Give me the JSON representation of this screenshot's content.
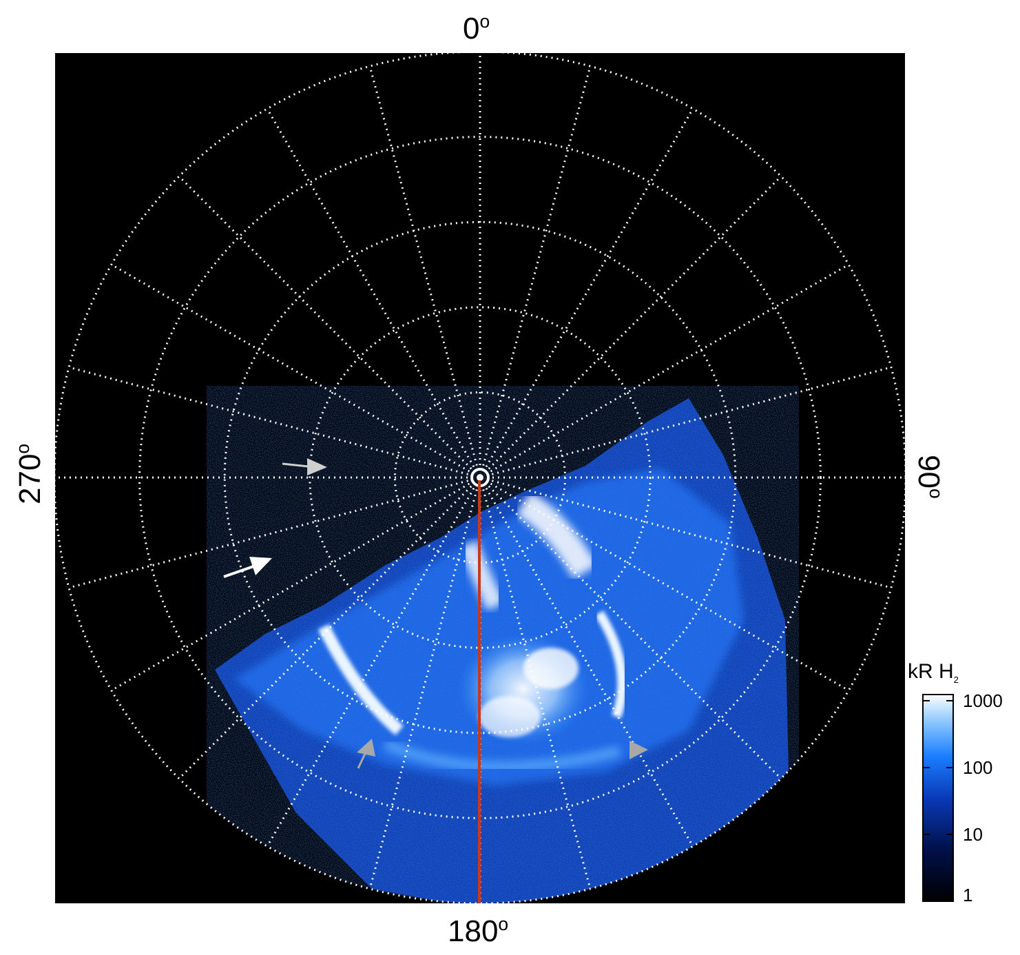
{
  "labels": {
    "top": "0",
    "right": "90",
    "bottom": "180",
    "left": "270",
    "degree_symbol": "o"
  },
  "colorbar": {
    "title_main": "kR H",
    "title_sub": "2",
    "ticks": [
      {
        "label": "1000",
        "value": 1000
      },
      {
        "label": "100",
        "value": 100
      },
      {
        "label": "10",
        "value": 10
      },
      {
        "label": "1",
        "value": 1
      }
    ],
    "colors": [
      "#000000",
      "#00104a",
      "#0a3ab8",
      "#1a7dff",
      "#8cc8ff",
      "#ffffff"
    ]
  },
  "grid": {
    "meridian_count": 24,
    "parallel_rings": 5,
    "style": "white-dotted"
  },
  "image": {
    "background": "#000000",
    "aurora_palette": [
      "#0a2a8c",
      "#1560e8",
      "#3a9bff",
      "#bfe2ff",
      "#ffffff"
    ],
    "meridian_line_color": "#c8381a",
    "arrows": [
      {
        "name": "arrow-upper-left",
        "color": "#cfcfcf"
      },
      {
        "name": "arrow-lower-left",
        "color": "#ffffff"
      },
      {
        "name": "arrow-bottom-left",
        "color": "#a8a8a8"
      },
      {
        "name": "arrow-bottom-right",
        "color": "#a8a8a8"
      }
    ]
  }
}
